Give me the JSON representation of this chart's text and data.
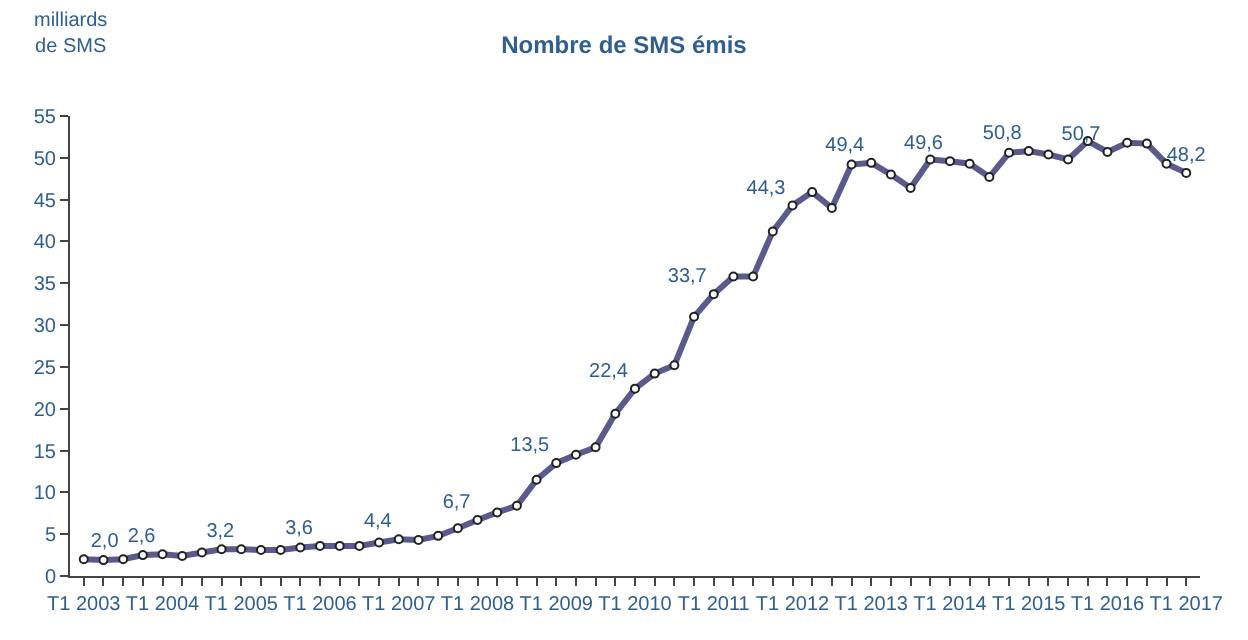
{
  "chart_data": {
    "type": "line",
    "title": "Nombre de SMS émis",
    "ylabel": "milliards\nde SMS",
    "categories": [
      "T1 2003",
      null,
      null,
      null,
      "T1 2004",
      null,
      null,
      null,
      "T1 2005",
      null,
      null,
      null,
      "T1 2006",
      null,
      null,
      null,
      "T1 2007",
      null,
      null,
      null,
      "T1 2008",
      null,
      null,
      null,
      "T1 2009",
      null,
      null,
      null,
      "T1 2010",
      null,
      null,
      null,
      "T1 2011",
      null,
      null,
      null,
      "T1 2012",
      null,
      null,
      null,
      "T1 2013",
      null,
      null,
      null,
      "T1 2014",
      null,
      null,
      null,
      "T1 2015",
      null,
      null,
      null,
      "T1 2016",
      null,
      null,
      null,
      "T1 2017"
    ],
    "series": [
      {
        "color": "#5c5a8c",
        "values": [
          2.0,
          1.9,
          2.0,
          2.5,
          2.6,
          2.4,
          2.8,
          3.2,
          3.2,
          3.1,
          3.1,
          3.4,
          3.6,
          3.6,
          3.6,
          4.0,
          4.4,
          4.3,
          4.8,
          5.7,
          6.7,
          7.6,
          8.4,
          11.5,
          13.5,
          14.5,
          15.4,
          19.4,
          22.4,
          24.2,
          25.2,
          31.0,
          33.7,
          35.8,
          35.8,
          41.2,
          44.3,
          45.9,
          44.0,
          49.2,
          49.4,
          48.0,
          46.4,
          49.8,
          49.6,
          49.3,
          47.7,
          50.6,
          50.8,
          50.4,
          49.8,
          52.0,
          50.7,
          51.8,
          51.7,
          49.3,
          48.2
        ],
        "value_labels": [
          "2,0",
          null,
          null,
          null,
          "2,6",
          null,
          null,
          null,
          "3,2",
          null,
          null,
          null,
          "3,6",
          null,
          null,
          null,
          "4,4",
          null,
          null,
          null,
          "6,7",
          null,
          null,
          null,
          "13,5",
          null,
          null,
          null,
          "22,4",
          null,
          null,
          null,
          "33,7",
          null,
          null,
          null,
          "44,3",
          null,
          null,
          null,
          "49,4",
          null,
          null,
          null,
          "49,6",
          null,
          null,
          null,
          "50,8",
          null,
          null,
          null,
          "50,7",
          null,
          null,
          null,
          "48,2"
        ]
      }
    ],
    "ylim": [
      0,
      55
    ],
    "yticks": [
      0,
      5,
      10,
      15,
      20,
      25,
      30,
      35,
      40,
      45,
      50,
      55
    ],
    "marker": "circle",
    "line_style": "solid"
  }
}
